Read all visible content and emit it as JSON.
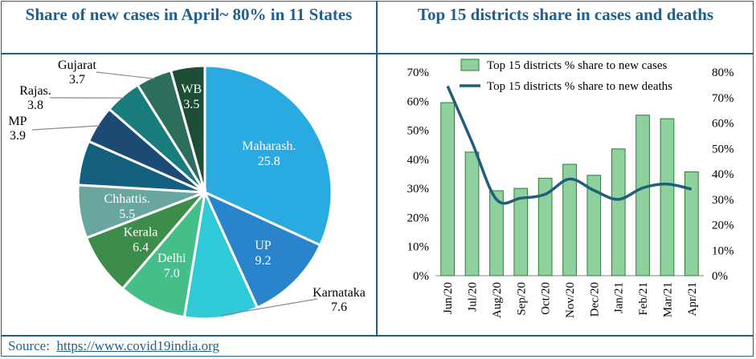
{
  "colors": {
    "frame": "#1f5f8f",
    "bar_fill": "#8fd19e",
    "bar_stroke": "#2e7d32",
    "line": "#1f5f7a"
  },
  "left_title": "Share of new cases in April~ 80% in 11 States",
  "right_title": "Top 15 districts share in cases and deaths",
  "source": {
    "label": "Source:",
    "url_text": "https://www.covid19india.org"
  },
  "chart_data": [
    {
      "type": "pie",
      "title": "Share of new cases in April~ 80% in 11 States",
      "slices": [
        {
          "label": "Maharash.",
          "value": 25.8,
          "color": "#29abe2"
        },
        {
          "label": "UP",
          "value": 9.2,
          "color": "#2a84cc"
        },
        {
          "label": "Karnataka",
          "value": 7.6,
          "color": "#2fc9d8"
        },
        {
          "label": "Delhi",
          "value": 7.0,
          "color": "#45bf8a"
        },
        {
          "label": "Kerala",
          "value": 6.4,
          "color": "#3d8c4a"
        },
        {
          "label": "Chhattis.",
          "value": 5.5,
          "color": "#6aa6a0"
        },
        {
          "label": "",
          "value": 4.6,
          "color": "#12607e"
        },
        {
          "label": "MP",
          "value": 3.9,
          "color": "#1d4a72"
        },
        {
          "label": "Rajas.",
          "value": 3.8,
          "color": "#1a7d7d"
        },
        {
          "label": "Gujarat",
          "value": 3.7,
          "color": "#2d6d5c"
        },
        {
          "label": "WB",
          "value": 3.5,
          "color": "#1e4d35"
        }
      ]
    },
    {
      "type": "bar",
      "title": "Top 15 districts share in cases and deaths",
      "categories": [
        "Jun/20",
        "Jul/20",
        "Aug/20",
        "Sep/20",
        "Oct/20",
        "Nov/20",
        "Dec/20",
        "Jan/21",
        "Feb/21",
        "Mar/21",
        "Apr/21"
      ],
      "series": [
        {
          "name": "Top 15 districts % share to new cases",
          "type": "bar",
          "axis": "left",
          "values": [
            59.5,
            42.5,
            29.2,
            30.0,
            33.5,
            38.3,
            34.5,
            43.6,
            55.2,
            54.0,
            35.7
          ]
        },
        {
          "name": "Top 15 districts % share to new deaths",
          "type": "line",
          "axis": "right",
          "values": [
            74.5,
            52.5,
            30.0,
            30.5,
            32.0,
            38.0,
            33.5,
            30.0,
            34.5,
            36.0,
            34.0
          ]
        }
      ],
      "ylim_left": [
        0,
        70
      ],
      "ylim_right": [
        0,
        80
      ],
      "left_ticks": [
        "0%",
        "10%",
        "20%",
        "30%",
        "40%",
        "50%",
        "60%",
        "70%"
      ],
      "right_ticks": [
        "0%",
        "10%",
        "20%",
        "30%",
        "40%",
        "50%",
        "60%",
        "70%",
        "80%"
      ],
      "legend": "top-center",
      "grid": false
    }
  ]
}
